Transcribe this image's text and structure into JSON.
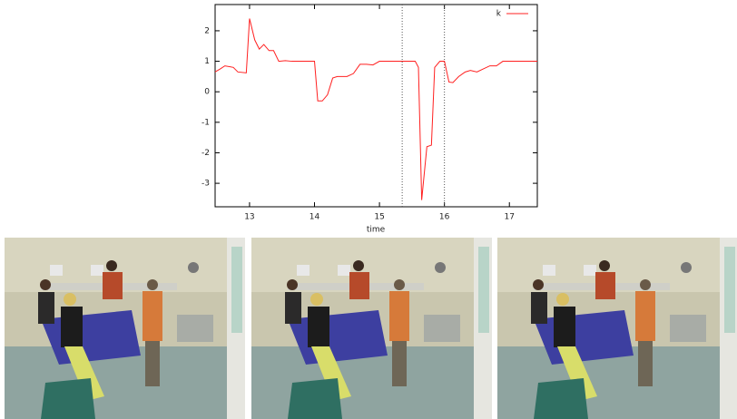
{
  "chart_data": {
    "type": "line",
    "xlabel": "time",
    "x": [
      12.47,
      12.55,
      12.62,
      12.75,
      12.82,
      12.95,
      13.0,
      13.08,
      13.15,
      13.22,
      13.3,
      13.37,
      13.45,
      13.55,
      13.65,
      14.0,
      14.05,
      14.12,
      14.2,
      14.28,
      14.35,
      14.5,
      14.6,
      14.7,
      14.8,
      14.9,
      15.0,
      15.55,
      15.6,
      15.65,
      15.73,
      15.8,
      15.85,
      15.93,
      16.0,
      16.07,
      16.13,
      16.22,
      16.32,
      16.4,
      16.5,
      16.6,
      16.7,
      16.8,
      16.9,
      17.43
    ],
    "series": [
      {
        "name": "k",
        "color": "#ff2020",
        "values": [
          0.65,
          0.75,
          0.85,
          0.8,
          0.65,
          0.62,
          2.4,
          1.7,
          1.4,
          1.55,
          1.35,
          1.35,
          1.0,
          1.02,
          1.0,
          1.0,
          -0.3,
          -0.3,
          -0.1,
          0.45,
          0.5,
          0.5,
          0.6,
          0.9,
          0.9,
          0.88,
          1.0,
          1.0,
          0.8,
          -3.55,
          -1.8,
          -1.75,
          0.8,
          1.0,
          1.0,
          0.32,
          0.3,
          0.5,
          0.65,
          0.7,
          0.65,
          0.75,
          0.85,
          0.85,
          1.0,
          1.0
        ]
      }
    ],
    "xlim": [
      12.47,
      17.43
    ],
    "xticks": [
      13,
      14,
      15,
      16,
      17
    ],
    "ylim": [
      -3.77,
      2.86
    ],
    "yticks": [
      -3,
      -2,
      -1,
      0,
      1,
      2
    ],
    "vlines": [
      15.35,
      16.0
    ],
    "legend": "upper-right"
  }
}
